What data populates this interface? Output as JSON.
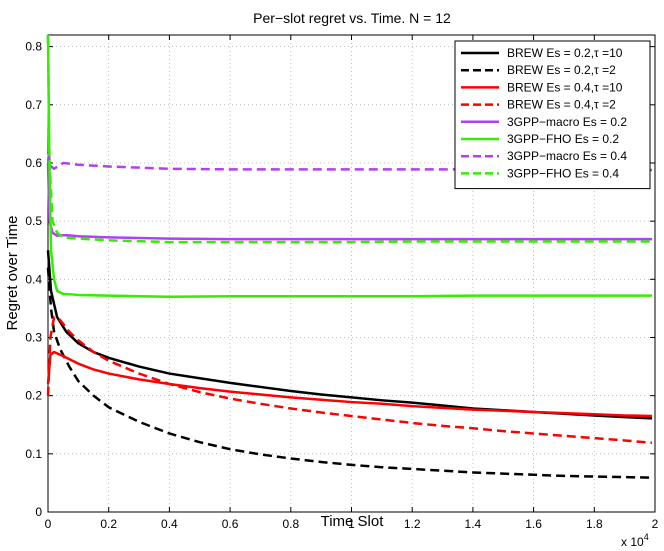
{
  "chart_data": {
    "type": "line",
    "title": "Per−slot regret vs. Time. N = 12",
    "xlabel": "Time Slot",
    "ylabel": "Regret over Time",
    "x_multiplier_label": "x 10",
    "x_multiplier_exponent": "4",
    "xlim": [
      0,
      20000
    ],
    "ylim": [
      0,
      0.82
    ],
    "x_tick_values": [
      0,
      2000,
      4000,
      6000,
      8000,
      10000,
      12000,
      14000,
      16000,
      18000,
      20000
    ],
    "x_tick_labels": [
      "0",
      "0.2",
      "0.4",
      "0.6",
      "0.8",
      "1",
      "1.2",
      "1.4",
      "1.6",
      "1.8",
      "2"
    ],
    "y_tick_values": [
      0,
      0.1,
      0.2,
      0.3,
      0.4,
      0.5,
      0.6,
      0.7,
      0.8
    ],
    "y_tick_labels": [
      "0",
      "0.1",
      "0.2",
      "0.3",
      "0.4",
      "0.5",
      "0.6",
      "0.7",
      "0.8"
    ],
    "grid": true,
    "legend_position": "top-right",
    "series": [
      {
        "name": "BREW Es = 0.2,τ =10",
        "color": "#000000",
        "dashed": false,
        "points": [
          [
            0,
            0.45
          ],
          [
            100,
            0.38
          ],
          [
            300,
            0.335
          ],
          [
            600,
            0.31
          ],
          [
            1000,
            0.29
          ],
          [
            1500,
            0.275
          ],
          [
            2000,
            0.265
          ],
          [
            3000,
            0.25
          ],
          [
            4000,
            0.238
          ],
          [
            5000,
            0.23
          ],
          [
            6000,
            0.222
          ],
          [
            7000,
            0.215
          ],
          [
            8000,
            0.208
          ],
          [
            9000,
            0.202
          ],
          [
            10000,
            0.197
          ],
          [
            11000,
            0.192
          ],
          [
            12000,
            0.188
          ],
          [
            13000,
            0.183
          ],
          [
            14000,
            0.178
          ],
          [
            15000,
            0.175
          ],
          [
            16000,
            0.172
          ],
          [
            17000,
            0.169
          ],
          [
            18000,
            0.166
          ],
          [
            19000,
            0.163
          ],
          [
            19900,
            0.161
          ]
        ]
      },
      {
        "name": "BREW Es = 0.2,τ =2",
        "color": "#000000",
        "dashed": true,
        "points": [
          [
            0,
            0.42
          ],
          [
            100,
            0.35
          ],
          [
            200,
            0.31
          ],
          [
            400,
            0.28
          ],
          [
            700,
            0.25
          ],
          [
            1000,
            0.225
          ],
          [
            1500,
            0.2
          ],
          [
            2000,
            0.18
          ],
          [
            3000,
            0.155
          ],
          [
            4000,
            0.135
          ],
          [
            5000,
            0.12
          ],
          [
            6000,
            0.108
          ],
          [
            7000,
            0.099
          ],
          [
            8000,
            0.092
          ],
          [
            9000,
            0.086
          ],
          [
            10000,
            0.081
          ],
          [
            11000,
            0.077
          ],
          [
            12000,
            0.074
          ],
          [
            13000,
            0.071
          ],
          [
            14000,
            0.068
          ],
          [
            15000,
            0.066
          ],
          [
            16000,
            0.064
          ],
          [
            17000,
            0.062
          ],
          [
            18000,
            0.061
          ],
          [
            19000,
            0.06
          ],
          [
            19900,
            0.059
          ]
        ]
      },
      {
        "name": "BREW Es = 0.4,τ =10",
        "color": "#ff0000",
        "dashed": false,
        "points": [
          [
            0,
            0.22
          ],
          [
            80,
            0.27
          ],
          [
            200,
            0.275
          ],
          [
            500,
            0.268
          ],
          [
            1000,
            0.255
          ],
          [
            1500,
            0.245
          ],
          [
            2000,
            0.238
          ],
          [
            3000,
            0.228
          ],
          [
            4000,
            0.22
          ],
          [
            5000,
            0.213
          ],
          [
            6000,
            0.207
          ],
          [
            7000,
            0.202
          ],
          [
            8000,
            0.197
          ],
          [
            9000,
            0.193
          ],
          [
            10000,
            0.189
          ],
          [
            11000,
            0.186
          ],
          [
            12000,
            0.182
          ],
          [
            13000,
            0.179
          ],
          [
            14000,
            0.176
          ],
          [
            15000,
            0.174
          ],
          [
            16000,
            0.172
          ],
          [
            17000,
            0.17
          ],
          [
            18000,
            0.168
          ],
          [
            19000,
            0.166
          ],
          [
            19900,
            0.165
          ]
        ]
      },
      {
        "name": "BREW Es = 0.4,τ =2",
        "color": "#ff0000",
        "dashed": true,
        "points": [
          [
            0,
            0.2
          ],
          [
            80,
            0.3
          ],
          [
            200,
            0.335
          ],
          [
            400,
            0.33
          ],
          [
            700,
            0.31
          ],
          [
            1000,
            0.295
          ],
          [
            1500,
            0.275
          ],
          [
            2000,
            0.26
          ],
          [
            3000,
            0.238
          ],
          [
            4000,
            0.22
          ],
          [
            5000,
            0.206
          ],
          [
            6000,
            0.195
          ],
          [
            7000,
            0.186
          ],
          [
            8000,
            0.178
          ],
          [
            9000,
            0.171
          ],
          [
            10000,
            0.165
          ],
          [
            11000,
            0.159
          ],
          [
            12000,
            0.153
          ],
          [
            13000,
            0.148
          ],
          [
            14000,
            0.144
          ],
          [
            15000,
            0.139
          ],
          [
            16000,
            0.135
          ],
          [
            17000,
            0.131
          ],
          [
            18000,
            0.127
          ],
          [
            19000,
            0.123
          ],
          [
            19900,
            0.119
          ]
        ]
      },
      {
        "name": "3GPP−macro Es = 0.2",
        "color": "#b040f0",
        "dashed": false,
        "points": [
          [
            0,
            0.6
          ],
          [
            50,
            0.5
          ],
          [
            150,
            0.48
          ],
          [
            300,
            0.475
          ],
          [
            600,
            0.476
          ],
          [
            1000,
            0.474
          ],
          [
            2000,
            0.472
          ],
          [
            4000,
            0.47
          ],
          [
            6000,
            0.469
          ],
          [
            8000,
            0.469
          ],
          [
            10000,
            0.469
          ],
          [
            12000,
            0.469
          ],
          [
            14000,
            0.469
          ],
          [
            16000,
            0.469
          ],
          [
            18000,
            0.469
          ],
          [
            19900,
            0.469
          ]
        ]
      },
      {
        "name": "3GPP−FHO Es = 0.2",
        "color": "#33ee00",
        "dashed": false,
        "points": [
          [
            0,
            0.82
          ],
          [
            40,
            0.62
          ],
          [
            100,
            0.45
          ],
          [
            200,
            0.4
          ],
          [
            300,
            0.38
          ],
          [
            500,
            0.375
          ],
          [
            800,
            0.374
          ],
          [
            1000,
            0.373
          ],
          [
            2000,
            0.372
          ],
          [
            3000,
            0.371
          ],
          [
            4000,
            0.37
          ],
          [
            6000,
            0.371
          ],
          [
            8000,
            0.371
          ],
          [
            10000,
            0.371
          ],
          [
            12000,
            0.371
          ],
          [
            14000,
            0.372
          ],
          [
            16000,
            0.372
          ],
          [
            18000,
            0.372
          ],
          [
            19900,
            0.372
          ]
        ]
      },
      {
        "name": "3GPP−macro Es = 0.4",
        "color": "#b040f0",
        "dashed": true,
        "points": [
          [
            0,
            0.62
          ],
          [
            80,
            0.595
          ],
          [
            200,
            0.59
          ],
          [
            500,
            0.6
          ],
          [
            1000,
            0.597
          ],
          [
            2000,
            0.594
          ],
          [
            4000,
            0.59
          ],
          [
            6000,
            0.589
          ],
          [
            8000,
            0.589
          ],
          [
            10000,
            0.589
          ],
          [
            12000,
            0.589
          ],
          [
            14000,
            0.589
          ],
          [
            16000,
            0.589
          ],
          [
            18000,
            0.588
          ],
          [
            19900,
            0.588
          ]
        ]
      },
      {
        "name": "3GPP−FHO Es = 0.4",
        "color": "#33ee00",
        "dashed": true,
        "points": [
          [
            0,
            0.82
          ],
          [
            50,
            0.6
          ],
          [
            150,
            0.5
          ],
          [
            300,
            0.48
          ],
          [
            500,
            0.472
          ],
          [
            1000,
            0.47
          ],
          [
            2000,
            0.467
          ],
          [
            4000,
            0.464
          ],
          [
            6000,
            0.464
          ],
          [
            8000,
            0.464
          ],
          [
            10000,
            0.464
          ],
          [
            12000,
            0.465
          ],
          [
            14000,
            0.465
          ],
          [
            16000,
            0.465
          ],
          [
            18000,
            0.465
          ],
          [
            19900,
            0.465
          ]
        ]
      }
    ]
  }
}
